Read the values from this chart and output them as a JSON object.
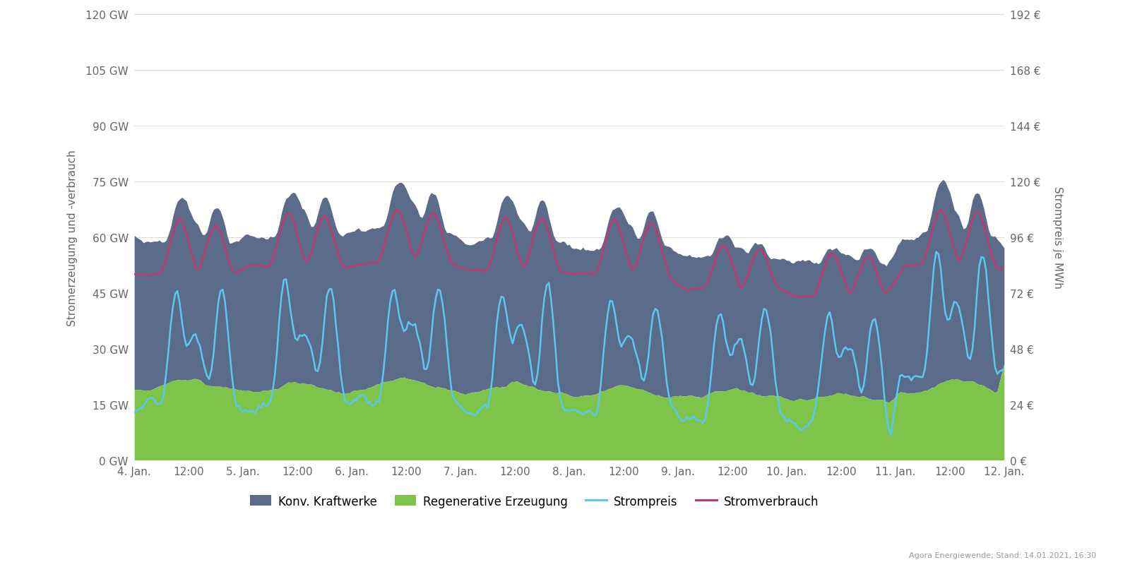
{
  "ylabel_left": "Stromerzeugung und -verbrauch",
  "ylabel_right": "Strompreis je MWh",
  "ylim_left": [
    0,
    120
  ],
  "ylim_right": [
    0,
    192
  ],
  "yticks_left": [
    0,
    15,
    30,
    45,
    60,
    75,
    90,
    105,
    120
  ],
  "ytick_labels_left": [
    "0 GW",
    "15 GW",
    "30 GW",
    "45 GW",
    "60 GW",
    "75 GW",
    "90 GW",
    "105 GW",
    "120 GW"
  ],
  "yticks_right": [
    0,
    24,
    48,
    72,
    96,
    120,
    144,
    168,
    192
  ],
  "ytick_labels_right": [
    "0 €",
    "24 €",
    "48 €",
    "72 €",
    "96 €",
    "120 €",
    "144 €",
    "168 €",
    "192 €"
  ],
  "xtick_labels": [
    "4. Jan.",
    "12:00",
    "5. Jan.",
    "12:00",
    "6. Jan.",
    "12:00",
    "7. Jan.",
    "12:00",
    "8. Jan.",
    "12:00",
    "9. Jan.",
    "12:00",
    "10. Jan.",
    "12:00",
    "11. Jan.",
    "12:00",
    "12. Jan."
  ],
  "conv_color": "#5b6b8a",
  "renew_color": "#7ec44a",
  "price_color": "#5bc8f0",
  "consumption_color": "#c0396e",
  "background_color": "#ffffff",
  "grid_color": "#dddddd",
  "legend_labels": [
    "Konv. Kraftwerke",
    "Regenerative Erzeugung",
    "Strompreis",
    "Stromverbrauch"
  ],
  "footer_text": "Agora Energiewende; Stand: 14.01.2021, 16:30"
}
